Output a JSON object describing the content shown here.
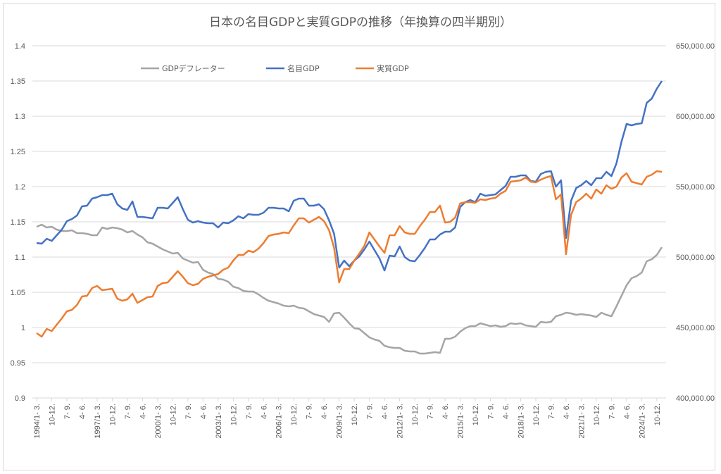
{
  "chart_data": {
    "type": "line",
    "title": "日本の名目GDPと実質GDPの推移（年換算の四半期別）",
    "x_tick_labels": [
      "1994/1- 3.",
      "10-12.",
      "7- 9.",
      "4- 6.",
      "1997/1- 3.",
      "10-12.",
      "7- 9.",
      "4- 6.",
      "2000/1- 3.",
      "10-12.",
      "7- 9.",
      "4- 6.",
      "2003/1- 3.",
      "10-12.",
      "7- 9.",
      "4- 6.",
      "2006/1- 3.",
      "10-12.",
      "7- 9.",
      "4- 6.",
      "2009/1- 3.",
      "10-12.",
      "7- 9.",
      "4- 6.",
      "2012/1- 3.",
      "10-12.",
      "7- 9.",
      "4- 6.",
      "2015/1- 3.",
      "10-12.",
      "7- 9.",
      "4- 6.",
      "2018/1- 3.",
      "10-12.",
      "7- 9.",
      "4- 6.",
      "2021/1- 3.",
      "10-12.",
      "7- 9.",
      "4- 6.",
      "2024/1- 3.",
      "10-12."
    ],
    "left_axis": {
      "min": 0.9,
      "max": 1.4,
      "ticks": [
        "0.9",
        "0.95",
        "1",
        "1.05",
        "1.1",
        "1.15",
        "1.2",
        "1.25",
        "1.3",
        "1.35",
        "1.4"
      ]
    },
    "right_axis": {
      "min": 400000,
      "max": 650000,
      "ticks": [
        "400,000.00",
        "450,000.00",
        "500,000.00",
        "550,000.00",
        "600,000.00",
        "650,000.00"
      ]
    },
    "legend_position": "top",
    "series": [
      {
        "name": "GDPデフレーター",
        "axis": "left",
        "color": "#a5a5a5",
        "values": [
          1.143,
          1.146,
          1.142,
          1.143,
          1.139,
          1.137,
          1.137,
          1.138,
          1.134,
          1.134,
          1.133,
          1.131,
          1.131,
          1.142,
          1.14,
          1.142,
          1.141,
          1.139,
          1.135,
          1.137,
          1.132,
          1.128,
          1.121,
          1.119,
          1.115,
          1.111,
          1.108,
          1.105,
          1.106,
          1.098,
          1.095,
          1.092,
          1.093,
          1.082,
          1.078,
          1.076,
          1.069,
          1.068,
          1.065,
          1.058,
          1.056,
          1.052,
          1.051,
          1.051,
          1.047,
          1.042,
          1.038,
          1.036,
          1.034,
          1.031,
          1.03,
          1.031,
          1.028,
          1.027,
          1.023,
          1.019,
          1.017,
          1.015,
          1.008,
          1.02,
          1.021,
          1.014,
          1.006,
          0.999,
          0.998,
          0.992,
          0.986,
          0.983,
          0.981,
          0.974,
          0.972,
          0.971,
          0.971,
          0.967,
          0.966,
          0.966,
          0.963,
          0.963,
          0.964,
          0.965,
          0.964,
          0.984,
          0.984,
          0.987,
          0.994,
          0.999,
          1.002,
          1.002,
          1.006,
          1.004,
          1.002,
          1.003,
          1.001,
          1.002,
          1.006,
          1.005,
          1.006,
          1.003,
          1.002,
          1.001,
          1.008,
          1.007,
          1.008,
          1.016,
          1.018,
          1.021,
          1.02,
          1.018,
          1.019,
          1.018,
          1.017,
          1.015,
          1.021,
          1.018,
          1.016,
          1.03,
          1.045,
          1.06,
          1.07,
          1.073,
          1.078,
          1.094,
          1.097,
          1.103,
          1.114
        ]
      },
      {
        "name": "名目GDP",
        "axis": "right",
        "color": "#4472c4",
        "values": [
          510000,
          509500,
          513000,
          511500,
          515500,
          519500,
          525500,
          527000,
          529500,
          536000,
          536500,
          541500,
          542500,
          544000,
          544000,
          545000,
          537500,
          534500,
          533500,
          539500,
          528500,
          528500,
          528000,
          527500,
          535000,
          535000,
          534500,
          538500,
          542500,
          534000,
          526500,
          524500,
          525500,
          524500,
          524000,
          524000,
          521000,
          524500,
          524000,
          526000,
          529000,
          527500,
          530500,
          530000,
          530000,
          531500,
          535000,
          535000,
          534500,
          534500,
          532500,
          540000,
          541500,
          541500,
          536500,
          536500,
          537500,
          534000,
          526000,
          516500,
          492500,
          497500,
          493500,
          497500,
          500500,
          505500,
          511000,
          505000,
          499000,
          490500,
          501000,
          500500,
          507500,
          500000,
          497500,
          497000,
          501500,
          506500,
          512500,
          512500,
          516000,
          518000,
          518000,
          521000,
          535500,
          539000,
          540500,
          539000,
          545000,
          543500,
          544000,
          544500,
          547500,
          550500,
          557000,
          557000,
          558000,
          558000,
          554000,
          553500,
          559000,
          560500,
          561000,
          550000,
          554500,
          513500,
          540000,
          549000,
          551000,
          554000,
          551000,
          556000,
          556000,
          560500,
          557500,
          566500,
          582000,
          594500,
          593500,
          594500,
          595000,
          609500,
          612500,
          619500,
          625000
        ]
      },
      {
        "name": "実質GDP",
        "axis": "right",
        "color": "#ed7d31",
        "values": [
          446000,
          443500,
          449000,
          447500,
          452000,
          456500,
          461500,
          462500,
          466000,
          472000,
          472500,
          478000,
          479500,
          476500,
          477000,
          477500,
          470500,
          469000,
          470000,
          474000,
          467500,
          469500,
          471500,
          472000,
          479500,
          481500,
          482000,
          486000,
          490000,
          486000,
          481500,
          480000,
          481000,
          484500,
          486000,
          487000,
          488000,
          491000,
          492500,
          497500,
          501500,
          501500,
          504500,
          503500,
          506000,
          510000,
          515000,
          516000,
          516500,
          517500,
          517000,
          522500,
          527500,
          527500,
          524500,
          526500,
          528500,
          525500,
          519000,
          506500,
          482000,
          491500,
          491500,
          497500,
          502500,
          508000,
          517500,
          512500,
          507500,
          503000,
          515500,
          515500,
          522000,
          517500,
          516500,
          516500,
          522000,
          526500,
          532000,
          532000,
          536500,
          524500,
          525000,
          528000,
          538000,
          539000,
          539000,
          538500,
          541000,
          540500,
          541500,
          542000,
          545000,
          547000,
          553500,
          554000,
          554500,
          556500,
          553500,
          553000,
          555000,
          556500,
          557500,
          541000,
          544500,
          502000,
          530000,
          539000,
          541500,
          545000,
          541500,
          548000,
          545000,
          551000,
          548500,
          550000,
          556500,
          559500,
          553500,
          552500,
          551500,
          557000,
          558500,
          561000,
          560500
        ]
      }
    ]
  }
}
